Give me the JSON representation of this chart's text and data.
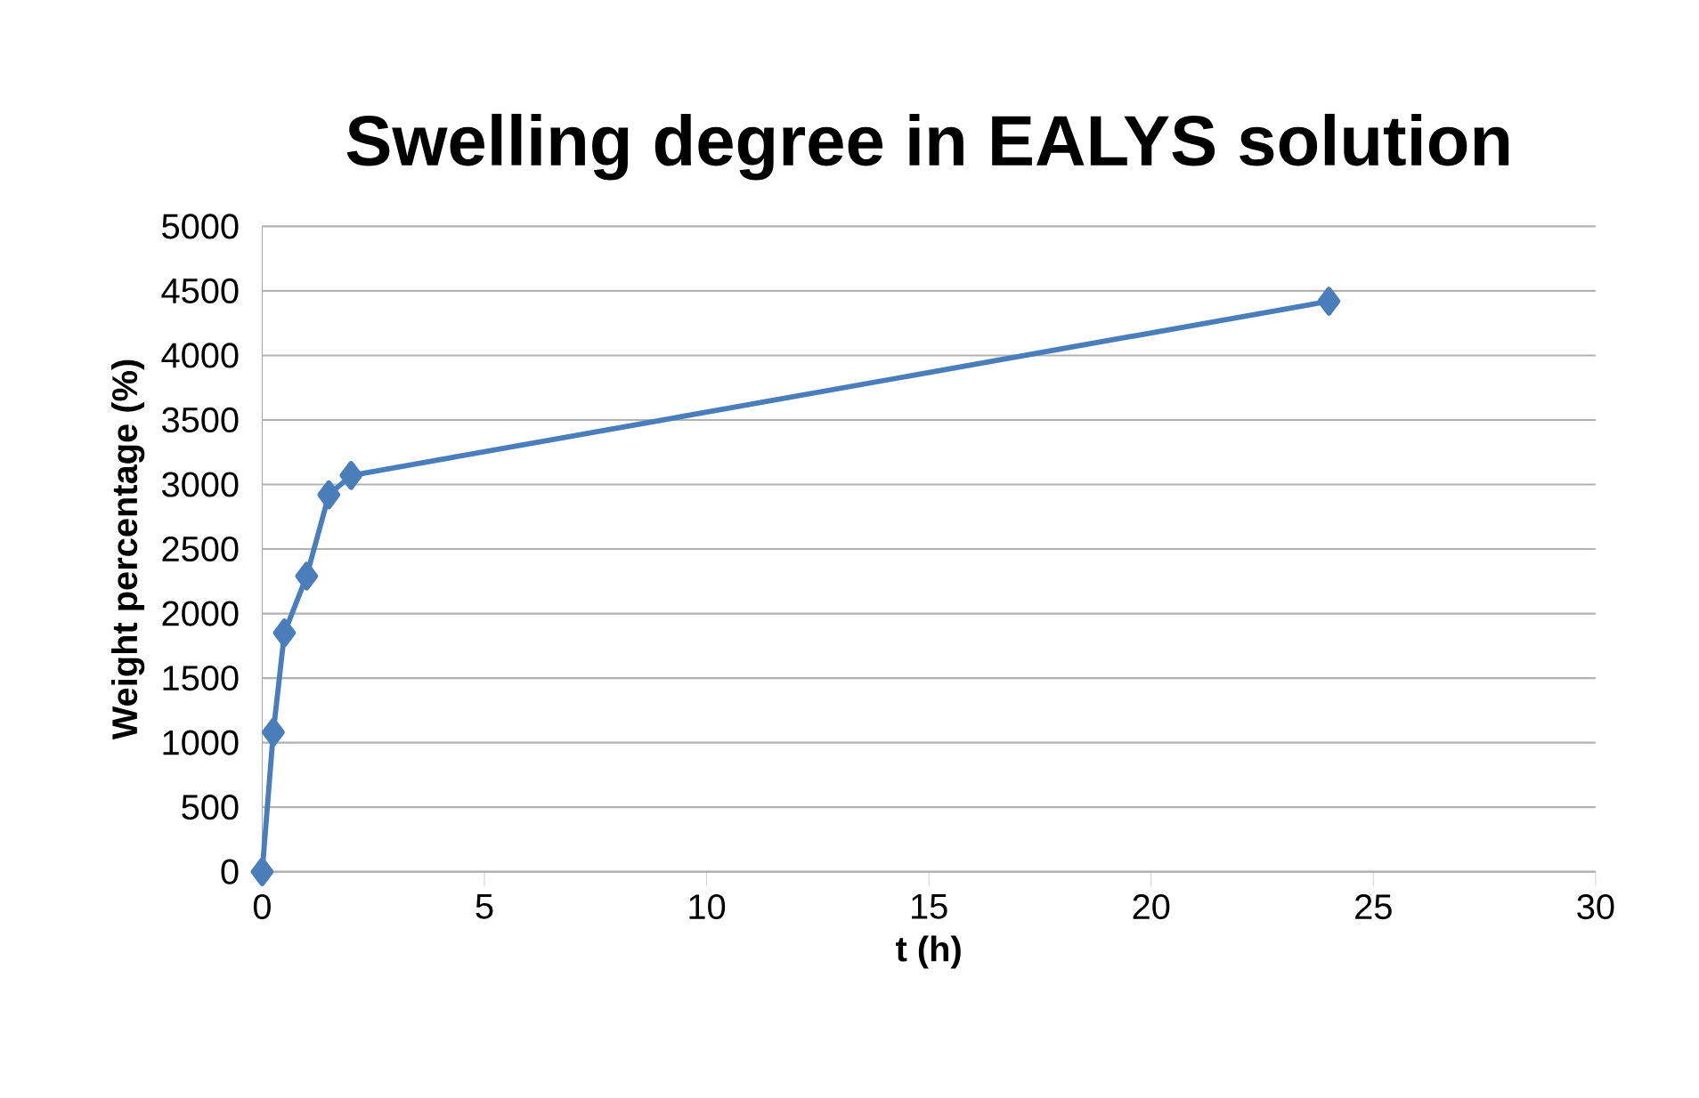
{
  "chart_data": {
    "type": "line",
    "title": "Swelling degree in EALYS solution",
    "xlabel": "t (h)",
    "ylabel": "Weight percentage (%)",
    "x": [
      0,
      0.25,
      0.5,
      1,
      1.5,
      2,
      24
    ],
    "series": [
      {
        "color": "#4a7ebb",
        "values": [
          0,
          1080,
          1850,
          2290,
          2920,
          3070,
          4420
        ]
      }
    ],
    "xlim": [
      0,
      30
    ],
    "xticks": [
      0,
      5,
      10,
      15,
      20,
      25,
      30
    ],
    "ylim": [
      0,
      5000
    ],
    "yticks": [
      0,
      500,
      1000,
      1500,
      2000,
      2500,
      3000,
      3500,
      4000,
      4500,
      5000
    ],
    "grid": "y",
    "marker": "diamond",
    "line_style": "solid"
  }
}
